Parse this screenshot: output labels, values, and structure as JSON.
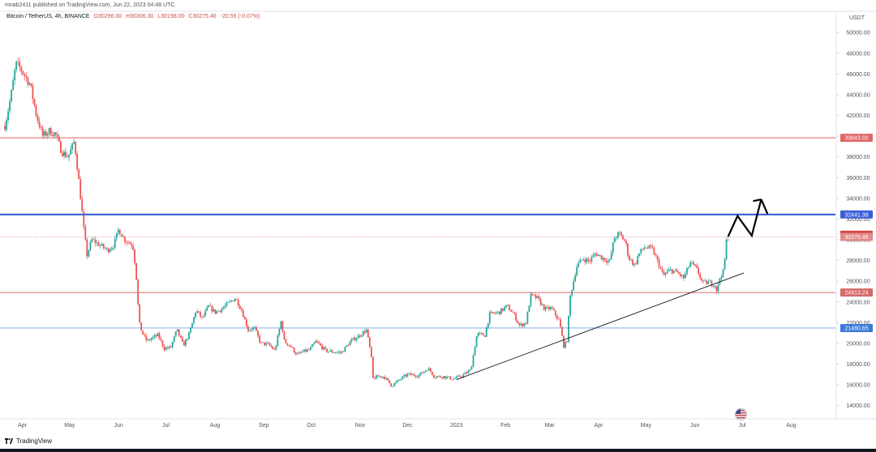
{
  "header": {
    "published": "mnab2411 published on TradingView.com, Jun 22, 2023 04:48 UTC"
  },
  "legend": {
    "symbol": "Bitcoin / TetherUS, 4h, BINANCE",
    "open": "O30296.00",
    "high": "H30306.30",
    "low": "L30198.00",
    "close": "C30275.46",
    "change": "-20.55 (-0.07%)"
  },
  "footer": {
    "brand": "TradingView"
  },
  "chart_data": {
    "type": "candlestick",
    "currency_label": "USDT",
    "y_ticks": [
      14000,
      16000,
      18000,
      20000,
      22000,
      24000,
      26000,
      28000,
      30000,
      32000,
      34000,
      36000,
      38000,
      40000,
      42000,
      44000,
      46000,
      48000,
      50000
    ],
    "y_tick_labels": [
      "14000.00",
      "16000.00",
      "18000.00",
      "20000.00",
      "22000.00",
      "24000.00",
      "26000.00",
      "28000.00",
      "30000.00",
      "32000.00",
      "34000.00",
      "36000.00",
      "38000.00",
      "40000.00",
      "42000.00",
      "44000.00",
      "46000.00",
      "48000.00",
      "50000.00"
    ],
    "ylim": [
      12800,
      50800
    ],
    "x_range": [
      "2022-03-21",
      "2023-08-29"
    ],
    "x_ticks": [
      {
        "date": "2022-04-01",
        "label": "Apr"
      },
      {
        "date": "2022-05-01",
        "label": "May"
      },
      {
        "date": "2022-06-01",
        "label": "Jun"
      },
      {
        "date": "2022-07-01",
        "label": "Jul"
      },
      {
        "date": "2022-08-01",
        "label": "Aug"
      },
      {
        "date": "2022-09-01",
        "label": "Sep"
      },
      {
        "date": "2022-10-01",
        "label": "Oct"
      },
      {
        "date": "2022-11-01",
        "label": "Nov"
      },
      {
        "date": "2022-12-01",
        "label": "Dec"
      },
      {
        "date": "2023-01-01",
        "label": "2023"
      },
      {
        "date": "2023-02-01",
        "label": "Feb"
      },
      {
        "date": "2023-03-01",
        "label": "Mar"
      },
      {
        "date": "2023-04-01",
        "label": "Apr"
      },
      {
        "date": "2023-05-01",
        "label": "May"
      },
      {
        "date": "2023-06-01",
        "label": "Jun"
      },
      {
        "date": "2023-07-01",
        "label": "Jul"
      },
      {
        "date": "2023-08-01",
        "label": "Aug"
      }
    ],
    "price_path": [
      [
        "2022-03-21",
        41000
      ],
      [
        "2022-03-25",
        44000
      ],
      [
        "2022-03-28",
        47000
      ],
      [
        "2022-03-31",
        46500
      ],
      [
        "2022-04-02",
        46000
      ],
      [
        "2022-04-06",
        45000
      ],
      [
        "2022-04-10",
        42000
      ],
      [
        "2022-04-14",
        40000
      ],
      [
        "2022-04-18",
        40500
      ],
      [
        "2022-04-22",
        40200
      ],
      [
        "2022-04-26",
        38500
      ],
      [
        "2022-04-30",
        38000
      ],
      [
        "2022-05-04",
        39500
      ],
      [
        "2022-05-07",
        35500
      ],
      [
        "2022-05-10",
        31000
      ],
      [
        "2022-05-12",
        28500
      ],
      [
        "2022-05-15",
        30000
      ],
      [
        "2022-05-20",
        29500
      ],
      [
        "2022-05-25",
        29000
      ],
      [
        "2022-05-29",
        29500
      ],
      [
        "2022-06-01",
        31000
      ],
      [
        "2022-06-05",
        30000
      ],
      [
        "2022-06-10",
        29500
      ],
      [
        "2022-06-12",
        27000
      ],
      [
        "2022-06-14",
        22000
      ],
      [
        "2022-06-16",
        21000
      ],
      [
        "2022-06-19",
        20200
      ],
      [
        "2022-06-22",
        20500
      ],
      [
        "2022-06-26",
        20800
      ],
      [
        "2022-06-30",
        19500
      ],
      [
        "2022-07-04",
        19600
      ],
      [
        "2022-07-08",
        21300
      ],
      [
        "2022-07-12",
        19800
      ],
      [
        "2022-07-16",
        21000
      ],
      [
        "2022-07-20",
        23200
      ],
      [
        "2022-07-24",
        22400
      ],
      [
        "2022-07-28",
        23600
      ],
      [
        "2022-08-01",
        23000
      ],
      [
        "2022-08-05",
        23300
      ],
      [
        "2022-08-10",
        23900
      ],
      [
        "2022-08-14",
        24400
      ],
      [
        "2022-08-18",
        23200
      ],
      [
        "2022-08-22",
        21300
      ],
      [
        "2022-08-26",
        21500
      ],
      [
        "2022-08-30",
        20000
      ],
      [
        "2022-09-04",
        19900
      ],
      [
        "2022-09-08",
        19300
      ],
      [
        "2022-09-12",
        22200
      ],
      [
        "2022-09-14",
        20200
      ],
      [
        "2022-09-18",
        19700
      ],
      [
        "2022-09-22",
        18900
      ],
      [
        "2022-09-26",
        19200
      ],
      [
        "2022-09-30",
        19400
      ],
      [
        "2022-10-04",
        20200
      ],
      [
        "2022-10-10",
        19300
      ],
      [
        "2022-10-14",
        19200
      ],
      [
        "2022-10-20",
        19100
      ],
      [
        "2022-10-26",
        20200
      ],
      [
        "2022-10-30",
        20600
      ],
      [
        "2022-11-05",
        21300
      ],
      [
        "2022-11-08",
        18800
      ],
      [
        "2022-11-09",
        16600
      ],
      [
        "2022-11-12",
        16800
      ],
      [
        "2022-11-16",
        16800
      ],
      [
        "2022-11-21",
        15900
      ],
      [
        "2022-11-26",
        16500
      ],
      [
        "2022-12-01",
        17000
      ],
      [
        "2022-12-08",
        16900
      ],
      [
        "2022-12-14",
        17600
      ],
      [
        "2022-12-18",
        16800
      ],
      [
        "2022-12-24",
        16800
      ],
      [
        "2022-12-30",
        16550
      ],
      [
        "2023-01-04",
        16850
      ],
      [
        "2023-01-10",
        17400
      ],
      [
        "2023-01-14",
        20900
      ],
      [
        "2023-01-19",
        20800
      ],
      [
        "2023-01-22",
        22800
      ],
      [
        "2023-01-28",
        23000
      ],
      [
        "2023-02-02",
        23600
      ],
      [
        "2023-02-06",
        22900
      ],
      [
        "2023-02-10",
        21700
      ],
      [
        "2023-02-14",
        22000
      ],
      [
        "2023-02-17",
        24600
      ],
      [
        "2023-02-21",
        24400
      ],
      [
        "2023-02-26",
        23300
      ],
      [
        "2023-03-02",
        23400
      ],
      [
        "2023-03-07",
        22200
      ],
      [
        "2023-03-10",
        19700
      ],
      [
        "2023-03-12",
        20300
      ],
      [
        "2023-03-14",
        24500
      ],
      [
        "2023-03-18",
        27400
      ],
      [
        "2023-03-22",
        28200
      ],
      [
        "2023-03-26",
        27900
      ],
      [
        "2023-03-30",
        28700
      ],
      [
        "2023-04-04",
        28200
      ],
      [
        "2023-04-08",
        27900
      ],
      [
        "2023-04-11",
        30200
      ],
      [
        "2023-04-14",
        30600
      ],
      [
        "2023-04-18",
        29800
      ],
      [
        "2023-04-20",
        28300
      ],
      [
        "2023-04-24",
        27500
      ],
      [
        "2023-04-26",
        28500
      ],
      [
        "2023-04-30",
        29300
      ],
      [
        "2023-05-05",
        29100
      ],
      [
        "2023-05-09",
        27700
      ],
      [
        "2023-05-12",
        26500
      ],
      [
        "2023-05-16",
        27100
      ],
      [
        "2023-05-20",
        26900
      ],
      [
        "2023-05-25",
        26300
      ],
      [
        "2023-05-29",
        27800
      ],
      [
        "2023-06-02",
        27200
      ],
      [
        "2023-06-06",
        25800
      ],
      [
        "2023-06-10",
        25900
      ],
      [
        "2023-06-14",
        25600
      ],
      [
        "2023-06-15",
        25000
      ],
      [
        "2023-06-17",
        26500
      ],
      [
        "2023-06-19",
        26900
      ],
      [
        "2023-06-20",
        28200
      ],
      [
        "2023-06-21",
        29900
      ],
      [
        "2023-06-22",
        30275
      ]
    ],
    "horizontal_levels": [
      {
        "price": 39843.0,
        "label": "39843.00",
        "color": "#e06666",
        "style": "solid"
      },
      {
        "price": 32441.38,
        "label": "32441.38",
        "color": "#3b5fd9",
        "style": "thick"
      },
      {
        "price": 30486.57,
        "label": "30486.57",
        "color": "#d64545",
        "style": "none"
      },
      {
        "price": 30275.46,
        "label": "30275.46",
        "color": "#e28a8a",
        "style": "dotted"
      },
      {
        "price": 24913.24,
        "label": "24913.24",
        "color": "#d66a6a",
        "style": "solid"
      },
      {
        "price": 21480.65,
        "label": "21480.65",
        "color": "#3b7bd9",
        "style": "thin"
      }
    ],
    "trendline": {
      "start": [
        "2023-01-01",
        16500
      ],
      "end": [
        "2023-07-02",
        26800
      ],
      "color": "#131722"
    },
    "projection_path": [
      [
        "2023-06-22",
        30300
      ],
      [
        "2023-06-28",
        32300
      ],
      [
        "2023-07-07",
        30400
      ],
      [
        "2023-07-13",
        33900
      ]
    ],
    "projection_arrow_tip": [
      "2023-07-17",
      32500
    ],
    "colors": {
      "up": "#26a69a",
      "down": "#ef5350",
      "text": "#131722",
      "axis_text": "#50535e"
    }
  }
}
